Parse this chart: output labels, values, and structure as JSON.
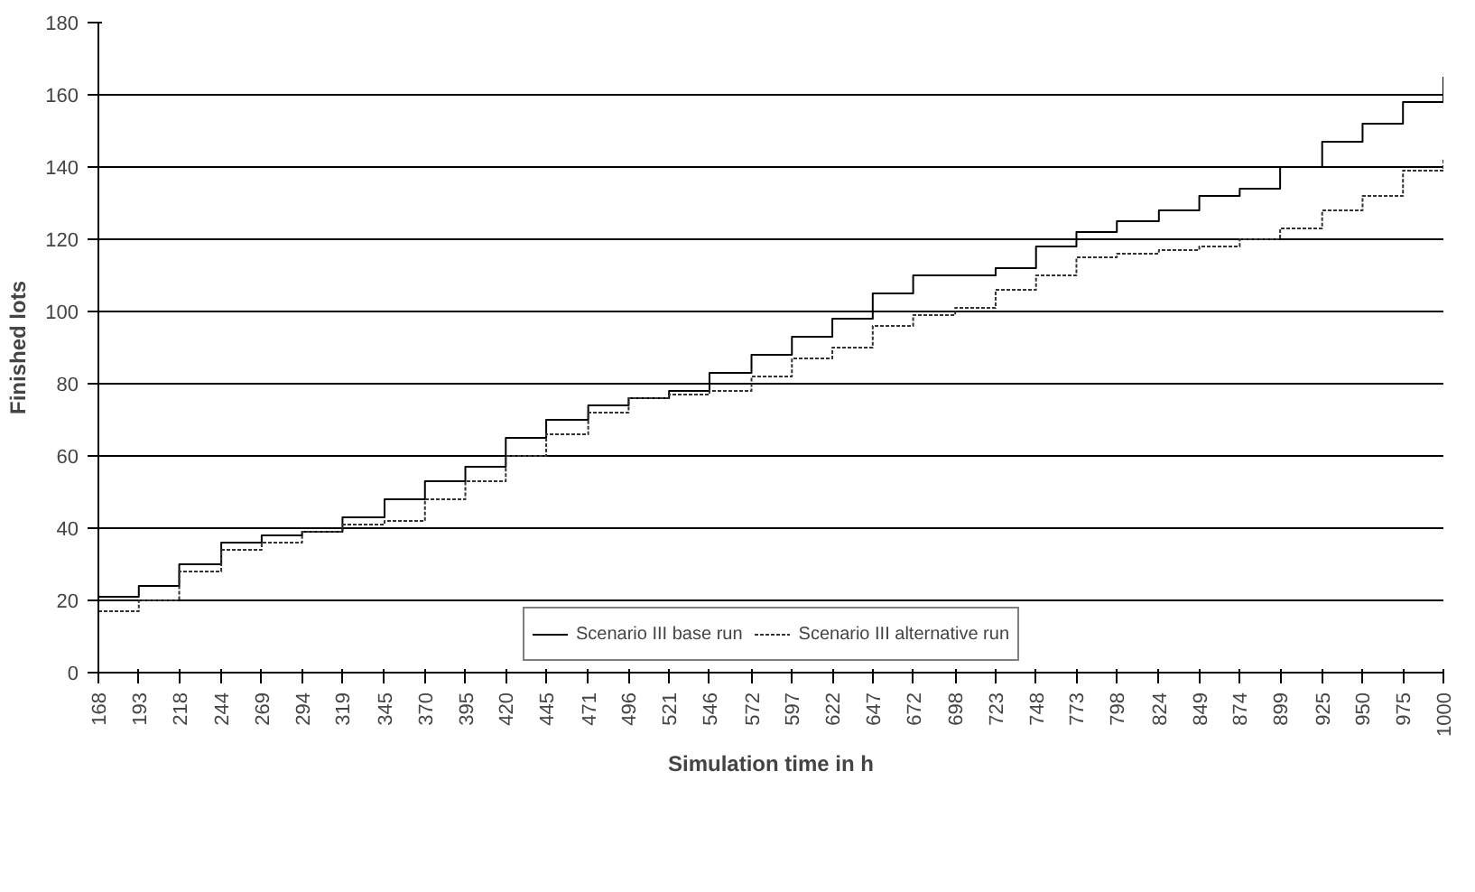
{
  "chart_data": {
    "type": "step",
    "xlabel": "Simulation time in h",
    "ylabel": "Finished lots",
    "x": [
      168,
      193,
      218,
      244,
      269,
      294,
      319,
      345,
      370,
      395,
      420,
      445,
      471,
      496,
      521,
      546,
      572,
      597,
      622,
      647,
      672,
      698,
      723,
      748,
      773,
      798,
      824,
      849,
      874,
      899,
      925,
      950,
      975,
      1000
    ],
    "series": [
      {
        "name": "Scenario III base run",
        "color": "#000000",
        "line_style": "solid",
        "values": [
          21,
          24,
          30,
          36,
          38,
          39,
          43,
          48,
          53,
          57,
          65,
          70,
          74,
          76,
          78,
          83,
          88,
          93,
          98,
          105,
          110,
          110,
          112,
          118,
          122,
          125,
          128,
          132,
          134,
          140,
          147,
          152,
          158,
          165
        ]
      },
      {
        "name": "Scenario III alternative run",
        "color": "#333333",
        "line_style": "dotted",
        "values": [
          17,
          20,
          28,
          34,
          36,
          39,
          41,
          42,
          48,
          53,
          60,
          66,
          72,
          76,
          77,
          78,
          82,
          87,
          90,
          96,
          99,
          101,
          106,
          110,
          115,
          116,
          117,
          118,
          120,
          123,
          128,
          132,
          139,
          142
        ]
      }
    ],
    "xlim": [
      168,
      1000
    ],
    "xticks": [
      168,
      193,
      218,
      244,
      269,
      294,
      319,
      345,
      370,
      395,
      420,
      445,
      471,
      496,
      521,
      546,
      572,
      597,
      622,
      647,
      672,
      698,
      723,
      748,
      773,
      798,
      824,
      849,
      874,
      899,
      925,
      950,
      975,
      1000
    ],
    "ylim": [
      0,
      180
    ],
    "yticks": [
      0,
      20,
      40,
      60,
      80,
      100,
      120,
      140,
      160,
      180
    ],
    "grid": "y",
    "legend": "bottom"
  }
}
